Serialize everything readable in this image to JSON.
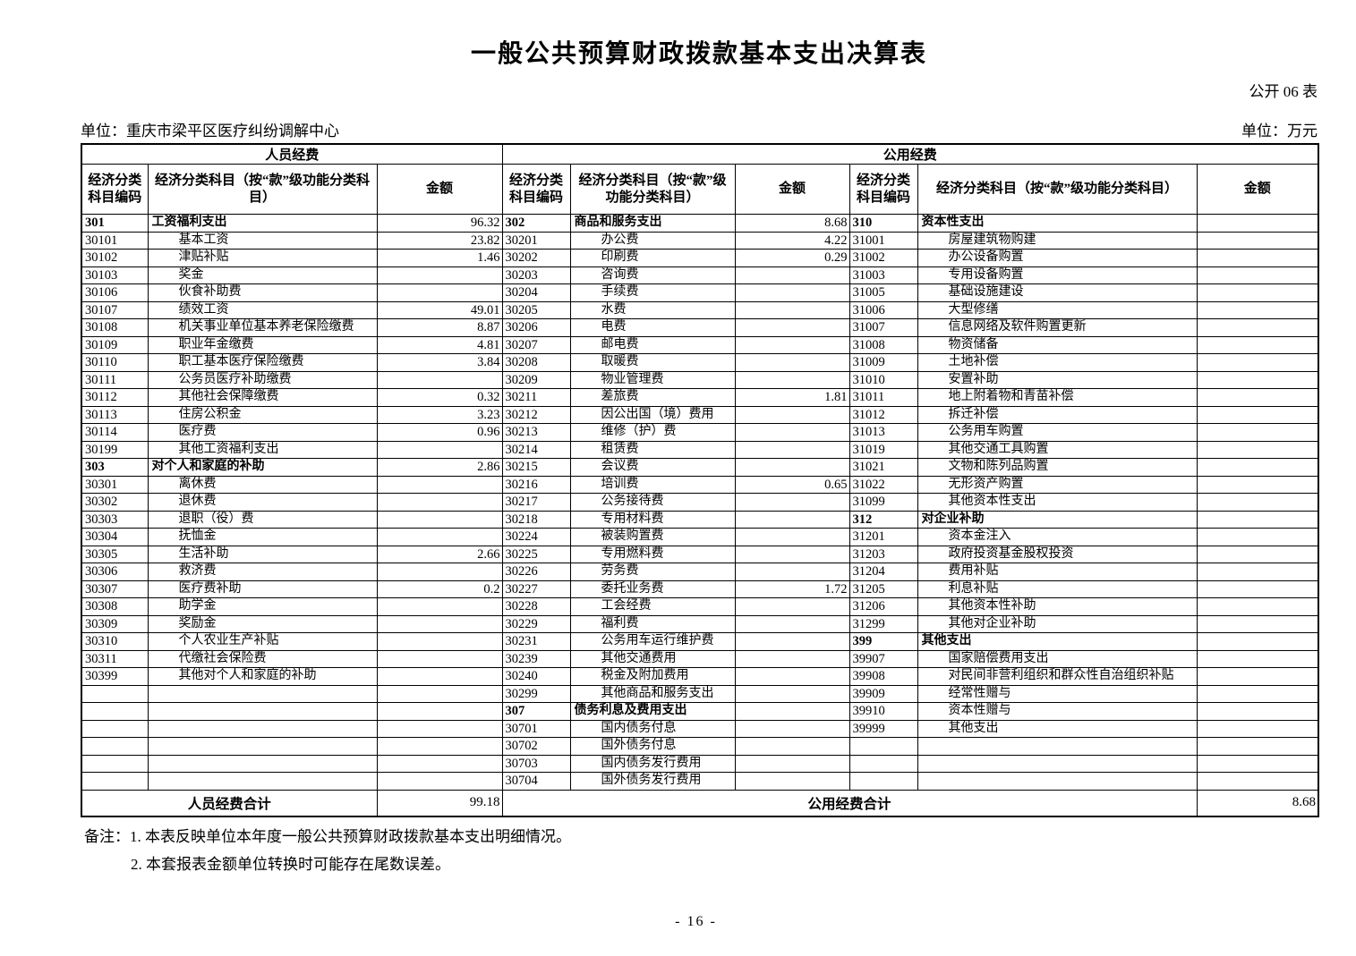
{
  "title": "一般公共预算财政拨款基本支出决算表",
  "table_code": "公开 06 表",
  "unit_name": "单位：重庆市梁平区医疗纠纷调解中心",
  "unit_money": "单位：万元",
  "header": {
    "group_personnel": "人员经费",
    "group_public": "公用经费",
    "col_code": "经济分类科目编码",
    "col_subject": "经济分类科目（按“款”级功能分类科目）",
    "col_amount": "金额"
  },
  "rows": [
    [
      [
        "301",
        "工资福利支出",
        "96.32",
        1
      ],
      [
        "302",
        "商品和服务支出",
        "8.68",
        1
      ],
      [
        "310",
        "资本性支出",
        "",
        1
      ]
    ],
    [
      [
        "30101",
        "基本工资",
        "23.82",
        0
      ],
      [
        "30201",
        "办公费",
        "4.22",
        0
      ],
      [
        "31001",
        "房屋建筑物购建",
        "",
        0
      ]
    ],
    [
      [
        "30102",
        "津贴补贴",
        "1.46",
        0
      ],
      [
        "30202",
        "印刷费",
        "0.29",
        0
      ],
      [
        "31002",
        "办公设备购置",
        "",
        0
      ]
    ],
    [
      [
        "30103",
        "奖金",
        "",
        0
      ],
      [
        "30203",
        "咨询费",
        "",
        0
      ],
      [
        "31003",
        "专用设备购置",
        "",
        0
      ]
    ],
    [
      [
        "30106",
        "伙食补助费",
        "",
        0
      ],
      [
        "30204",
        "手续费",
        "",
        0
      ],
      [
        "31005",
        "基础设施建设",
        "",
        0
      ]
    ],
    [
      [
        "30107",
        "绩效工资",
        "49.01",
        0
      ],
      [
        "30205",
        "水费",
        "",
        0
      ],
      [
        "31006",
        "大型修缮",
        "",
        0
      ]
    ],
    [
      [
        "30108",
        "机关事业单位基本养老保险缴费",
        "8.87",
        0
      ],
      [
        "30206",
        "电费",
        "",
        0
      ],
      [
        "31007",
        "信息网络及软件购置更新",
        "",
        0
      ]
    ],
    [
      [
        "30109",
        "职业年金缴费",
        "4.81",
        0
      ],
      [
        "30207",
        "邮电费",
        "",
        0
      ],
      [
        "31008",
        "物资储备",
        "",
        0
      ]
    ],
    [
      [
        "30110",
        "职工基本医疗保险缴费",
        "3.84",
        0
      ],
      [
        "30208",
        "取暖费",
        "",
        0
      ],
      [
        "31009",
        "土地补偿",
        "",
        0
      ]
    ],
    [
      [
        "30111",
        "公务员医疗补助缴费",
        "",
        0
      ],
      [
        "30209",
        "物业管理费",
        "",
        0
      ],
      [
        "31010",
        "安置补助",
        "",
        0
      ]
    ],
    [
      [
        "30112",
        "其他社会保障缴费",
        "0.32",
        0
      ],
      [
        "30211",
        "差旅费",
        "1.81",
        0
      ],
      [
        "31011",
        "地上附着物和青苗补偿",
        "",
        0
      ]
    ],
    [
      [
        "30113",
        "住房公积金",
        "3.23",
        0
      ],
      [
        "30212",
        "因公出国（境）费用",
        "",
        0
      ],
      [
        "31012",
        "拆迁补偿",
        "",
        0
      ]
    ],
    [
      [
        "30114",
        "医疗费",
        "0.96",
        0
      ],
      [
        "30213",
        "维修（护）费",
        "",
        0
      ],
      [
        "31013",
        "公务用车购置",
        "",
        0
      ]
    ],
    [
      [
        "30199",
        "其他工资福利支出",
        "",
        0
      ],
      [
        "30214",
        "租赁费",
        "",
        0
      ],
      [
        "31019",
        "其他交通工具购置",
        "",
        0
      ]
    ],
    [
      [
        "303",
        "对个人和家庭的补助",
        "2.86",
        1
      ],
      [
        "30215",
        "会议费",
        "",
        0
      ],
      [
        "31021",
        "文物和陈列品购置",
        "",
        0
      ]
    ],
    [
      [
        "30301",
        "离休费",
        "",
        0
      ],
      [
        "30216",
        "培训费",
        "0.65",
        0
      ],
      [
        "31022",
        "无形资产购置",
        "",
        0
      ]
    ],
    [
      [
        "30302",
        "退休费",
        "",
        0
      ],
      [
        "30217",
        "公务接待费",
        "",
        0
      ],
      [
        "31099",
        "其他资本性支出",
        "",
        0
      ]
    ],
    [
      [
        "30303",
        "退职（役）费",
        "",
        0
      ],
      [
        "30218",
        "专用材料费",
        "",
        0
      ],
      [
        "312",
        "对企业补助",
        "",
        1
      ]
    ],
    [
      [
        "30304",
        "抚恤金",
        "",
        0
      ],
      [
        "30224",
        "被装购置费",
        "",
        0
      ],
      [
        "31201",
        "资本金注入",
        "",
        0
      ]
    ],
    [
      [
        "30305",
        "生活补助",
        "2.66",
        0
      ],
      [
        "30225",
        "专用燃料费",
        "",
        0
      ],
      [
        "31203",
        "政府投资基金股权投资",
        "",
        0
      ]
    ],
    [
      [
        "30306",
        "救济费",
        "",
        0
      ],
      [
        "30226",
        "劳务费",
        "",
        0
      ],
      [
        "31204",
        "费用补贴",
        "",
        0
      ]
    ],
    [
      [
        "30307",
        "医疗费补助",
        "0.2",
        0
      ],
      [
        "30227",
        "委托业务费",
        "1.72",
        0
      ],
      [
        "31205",
        "利息补贴",
        "",
        0
      ]
    ],
    [
      [
        "30308",
        "助学金",
        "",
        0
      ],
      [
        "30228",
        "工会经费",
        "",
        0
      ],
      [
        "31206",
        "其他资本性补助",
        "",
        0
      ]
    ],
    [
      [
        "30309",
        "奖励金",
        "",
        0
      ],
      [
        "30229",
        "福利费",
        "",
        0
      ],
      [
        "31299",
        "其他对企业补助",
        "",
        0
      ]
    ],
    [
      [
        "30310",
        "个人农业生产补贴",
        "",
        0
      ],
      [
        "30231",
        "公务用车运行维护费",
        "",
        0
      ],
      [
        "399",
        "其他支出",
        "",
        1
      ]
    ],
    [
      [
        "30311",
        "代缴社会保险费",
        "",
        0
      ],
      [
        "30239",
        "其他交通费用",
        "",
        0
      ],
      [
        "39907",
        "国家赔偿费用支出",
        "",
        0
      ]
    ],
    [
      [
        "30399",
        "其他对个人和家庭的补助",
        "",
        0
      ],
      [
        "30240",
        "税金及附加费用",
        "",
        0
      ],
      [
        "39908",
        "对民间非营利组织和群众性自治组织补贴",
        "",
        0
      ]
    ],
    [
      [
        "",
        "",
        "",
        0
      ],
      [
        "30299",
        "其他商品和服务支出",
        "",
        0
      ],
      [
        "39909",
        "经常性赠与",
        "",
        0
      ]
    ],
    [
      [
        "",
        "",
        "",
        0
      ],
      [
        "307",
        "债务利息及费用支出",
        "",
        1
      ],
      [
        "39910",
        "资本性赠与",
        "",
        0
      ]
    ],
    [
      [
        "",
        "",
        "",
        0
      ],
      [
        "30701",
        "国内债务付息",
        "",
        0
      ],
      [
        "39999",
        "其他支出",
        "",
        0
      ]
    ],
    [
      [
        "",
        "",
        "",
        0
      ],
      [
        "30702",
        "国外债务付息",
        "",
        0
      ],
      [
        "",
        "",
        "",
        0
      ]
    ],
    [
      [
        "",
        "",
        "",
        0
      ],
      [
        "30703",
        "国内债务发行费用",
        "",
        0
      ],
      [
        "",
        "",
        "",
        0
      ]
    ],
    [
      [
        "",
        "",
        "",
        0
      ],
      [
        "30704",
        "国外债务发行费用",
        "",
        0
      ],
      [
        "",
        "",
        "",
        0
      ]
    ]
  ],
  "totals": {
    "personnel_label": "人员经费合计",
    "personnel_amount": "99.18",
    "public_label": "公用经费合计",
    "public_amount": "8.68"
  },
  "notes": {
    "line1": "备注：1. 本表反映单位本年度一般公共预算财政拨款基本支出明细情况。",
    "line2": "2. 本套报表金额单位转换时可能存在尾数误差。"
  },
  "page_number": "- 16 -"
}
